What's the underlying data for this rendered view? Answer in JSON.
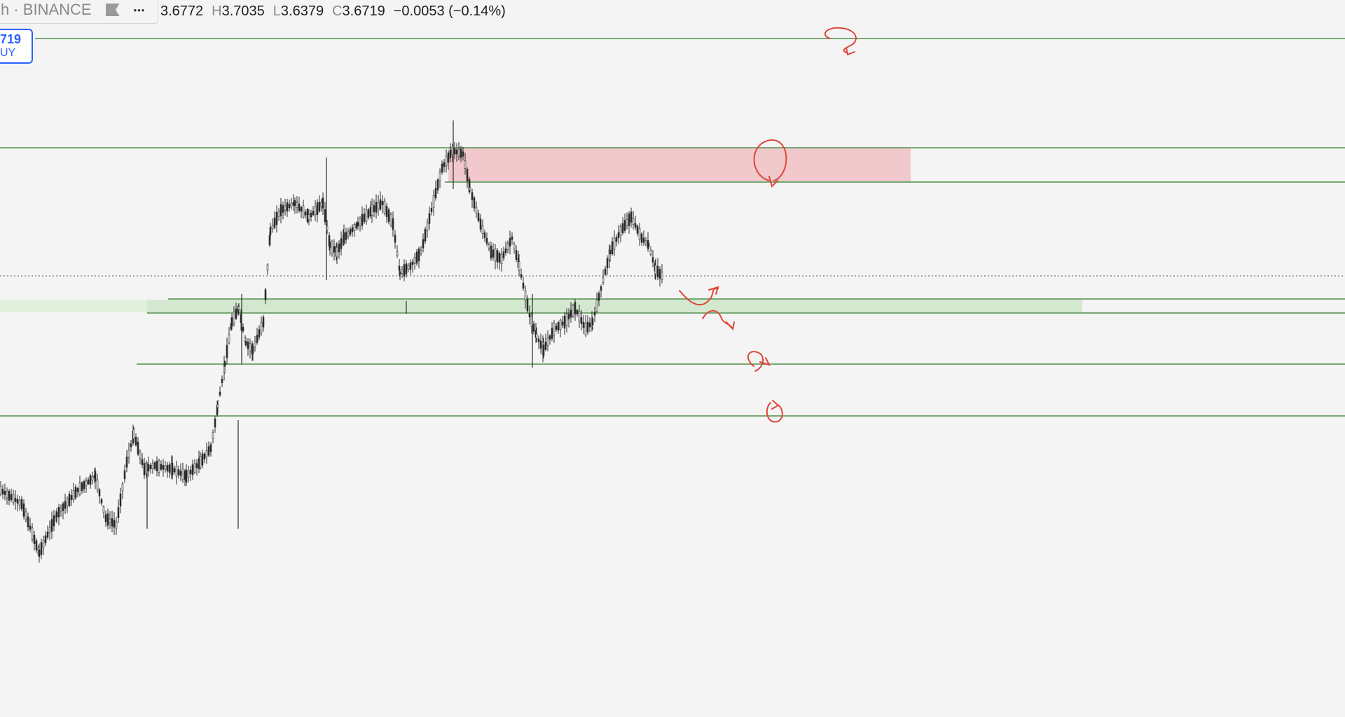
{
  "legend": {
    "symbol_text": "h · BINANCE",
    "flag_icon": "flag-icon",
    "more_icon": "more-dots-icon",
    "more_glyph": "•••",
    "open_label": "",
    "open_value": "3.6772",
    "high_label": "H",
    "high_value": "3.7035",
    "low_label": "L",
    "low_value": "3.6379",
    "close_label": "C",
    "close_value": "3.6719",
    "change": "−0.0053 (−0.14%)"
  },
  "price_tag": {
    "price": "719",
    "side": "UY"
  },
  "colors": {
    "background": "#f4f4f4",
    "candle": "#2a2a2a",
    "hline": "#4f8f46",
    "supply_zone": "#f1c8cc",
    "demand_zone": "#d4e8cf",
    "annotation": "#e0463a",
    "price_line": "#555555",
    "accent": "#2962ff"
  },
  "chart_data": {
    "type": "candlestick",
    "last_close": 3.6719,
    "high": 3.7035,
    "low": 3.6379,
    "open": 3.6772
  }
}
